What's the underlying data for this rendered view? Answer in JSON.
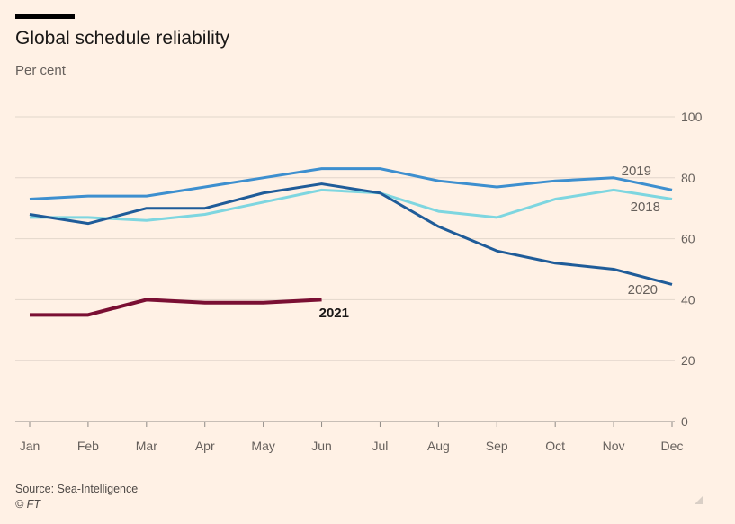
{
  "header": {
    "title": "Global schedule reliability",
    "subtitle": "Per cent"
  },
  "footer": {
    "source": "Source: Sea-Intelligence",
    "credit": "© FT"
  },
  "chart_data": {
    "type": "line",
    "title": "Global schedule reliability",
    "ylabel": "Per cent",
    "xlabel": "",
    "categories": [
      "Jan",
      "Feb",
      "Mar",
      "Apr",
      "May",
      "Jun",
      "Jul",
      "Aug",
      "Sep",
      "Oct",
      "Nov",
      "Dec"
    ],
    "ylim": [
      0,
      100
    ],
    "yticks": [
      0,
      20,
      40,
      60,
      80,
      100
    ],
    "grid": true,
    "series": [
      {
        "name": "2019",
        "color": "#3D8FCF",
        "bold": false,
        "values": [
          73,
          74,
          74,
          77,
          80,
          83,
          83,
          79,
          77,
          79,
          80,
          76
        ]
      },
      {
        "name": "2018",
        "color": "#7ED6E0",
        "bold": false,
        "values": [
          67,
          67,
          66,
          68,
          72,
          76,
          75,
          69,
          67,
          73,
          76,
          73
        ]
      },
      {
        "name": "2020",
        "color": "#1F5C99",
        "bold": false,
        "values": [
          68,
          65,
          70,
          70,
          75,
          78,
          75,
          64,
          56,
          52,
          50,
          45
        ]
      },
      {
        "name": "2021",
        "color": "#7A0F33",
        "bold": true,
        "values": [
          35,
          35,
          40,
          39,
          39,
          40,
          null,
          null,
          null,
          null,
          null,
          null
        ]
      }
    ]
  }
}
